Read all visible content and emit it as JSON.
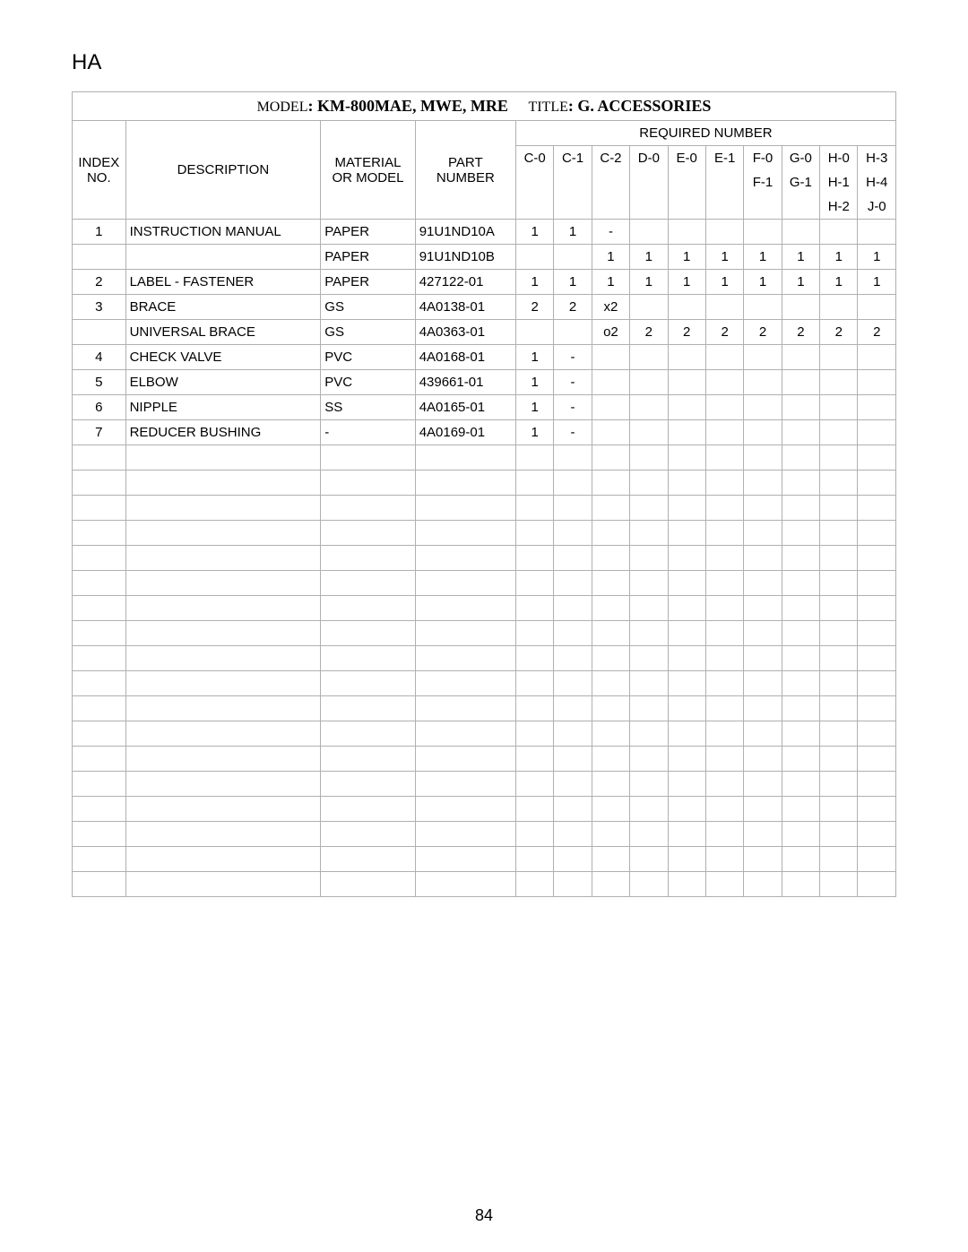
{
  "top_label": "HA",
  "model_label": "MODEL",
  "model_value": ": KM-800MAE, MWE, MRE",
  "title_label": "TITLE",
  "title_value": ": G. ACCESSORIES",
  "headers": {
    "index": "INDEX NO.",
    "description": "DESCRIPTION",
    "material": "MATERIAL OR MODEL",
    "part": "PART NUMBER",
    "required": "REQUIRED NUMBER"
  },
  "subcols_row1": [
    "C-0",
    "C-1",
    "C-2",
    "D-0",
    "E-0",
    "E-1",
    "F-0",
    "G-0",
    "H-0",
    "H-3"
  ],
  "subcols_row2": [
    "",
    "",
    "",
    "",
    "",
    "",
    "F-1",
    "G-1",
    "H-1",
    "H-4"
  ],
  "subcols_row3": [
    "",
    "",
    "",
    "",
    "",
    "",
    "",
    "",
    "H-2",
    "J-0"
  ],
  "rows": [
    {
      "idx": "1",
      "desc": "INSTRUCTION MANUAL",
      "mat": "PAPER",
      "part": "91U1ND10A",
      "q": [
        "1",
        "1",
        "-",
        "",
        "",
        "",
        "",
        "",
        "",
        ""
      ]
    },
    {
      "idx": "",
      "desc": "",
      "mat": "PAPER",
      "part": "91U1ND10B",
      "q": [
        "",
        "",
        "1",
        "1",
        "1",
        "1",
        "1",
        "1",
        "1",
        "1"
      ]
    },
    {
      "idx": "2",
      "desc": "LABEL - FASTENER",
      "mat": "PAPER",
      "part": "427122-01",
      "q": [
        "1",
        "1",
        "1",
        "1",
        "1",
        "1",
        "1",
        "1",
        "1",
        "1"
      ]
    },
    {
      "idx": "3",
      "desc": "BRACE",
      "mat": "GS",
      "part": "4A0138-01",
      "q": [
        "2",
        "2",
        "x2",
        "",
        "",
        "",
        "",
        "",
        "",
        ""
      ]
    },
    {
      "idx": "",
      "desc": "UNIVERSAL BRACE",
      "mat": "GS",
      "part": "4A0363-01",
      "q": [
        "",
        "",
        "o2",
        "2",
        "2",
        "2",
        "2",
        "2",
        "2",
        "2"
      ]
    },
    {
      "idx": "4",
      "desc": "CHECK VALVE",
      "mat": "PVC",
      "part": "4A0168-01",
      "q": [
        "1",
        "-",
        "",
        "",
        "",
        "",
        "",
        "",
        "",
        ""
      ]
    },
    {
      "idx": "5",
      "desc": "ELBOW",
      "mat": "PVC",
      "part": "439661-01",
      "q": [
        "1",
        "-",
        "",
        "",
        "",
        "",
        "",
        "",
        "",
        ""
      ]
    },
    {
      "idx": "6",
      "desc": "NIPPLE",
      "mat": "SS",
      "part": "4A0165-01",
      "q": [
        "1",
        "-",
        "",
        "",
        "",
        "",
        "",
        "",
        "",
        ""
      ]
    },
    {
      "idx": "7",
      "desc": "REDUCER BUSHING",
      "mat": "-",
      "part": "4A0169-01",
      "q": [
        "1",
        "-",
        "",
        "",
        "",
        "",
        "",
        "",
        "",
        ""
      ]
    }
  ],
  "empty_rows": 18,
  "page_number": "84",
  "colors": {
    "border": "#b0b0b0",
    "text": "#000000",
    "background": "#ffffff"
  }
}
